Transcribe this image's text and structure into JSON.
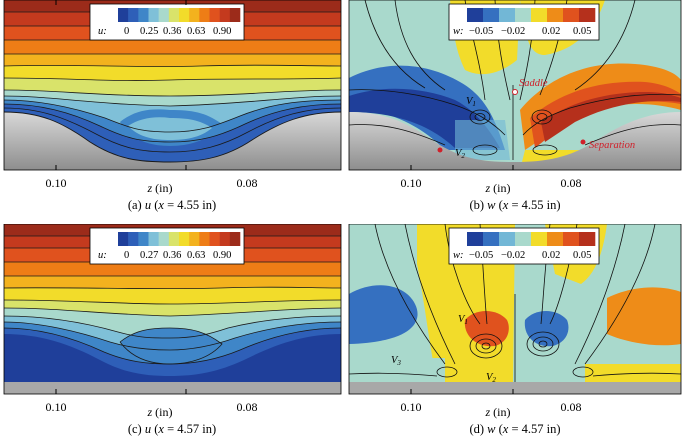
{
  "panels": [
    {
      "id": "a",
      "variable": "u",
      "legend": {
        "var_label": "u:",
        "ticks": [
          "0",
          "0.25",
          "0.36",
          "0.63",
          "0.90"
        ]
      },
      "caption": {
        "letter": "(a) ",
        "var": "u",
        "pre": " (",
        "x": "x",
        "post": " = 4.55 in)"
      },
      "xticks": [
        "0.10",
        "0.08"
      ],
      "xlabel": {
        "var": "z",
        "unit": " (in)"
      }
    },
    {
      "id": "b",
      "variable": "w",
      "legend": {
        "var_label": "w:",
        "ticks": [
          "−0.05",
          "−0.02",
          "0.02",
          "0.05"
        ]
      },
      "caption": {
        "letter": "(b) ",
        "var": "w",
        "pre": " (",
        "x": "x",
        "post": " = 4.55 in)"
      },
      "xticks": [
        "0.10",
        "0.08"
      ],
      "xlabel": {
        "var": "z",
        "unit": " (in)"
      },
      "annotations": {
        "v1": "V",
        "v1_sub": "1",
        "v2": "V",
        "v2_sub": "2",
        "saddle": "Saddle",
        "separation": "Separation"
      }
    },
    {
      "id": "c",
      "variable": "u",
      "legend": {
        "var_label": "u:",
        "ticks": [
          "0",
          "0.27",
          "0.36",
          "0.63",
          "0.90"
        ]
      },
      "caption": {
        "letter": "(c) ",
        "var": "u",
        "pre": " (",
        "x": "x",
        "post": " = 4.57 in)"
      },
      "xticks": [
        "0.10",
        "0.08"
      ],
      "xlabel": {
        "var": "z",
        "unit": " (in)"
      }
    },
    {
      "id": "d",
      "variable": "w",
      "legend": {
        "var_label": "w:",
        "ticks": [
          "−0.05",
          "−0.02",
          "0.02",
          "0.05"
        ]
      },
      "caption": {
        "letter": "(d) ",
        "var": "w",
        "pre": " (",
        "x": "x",
        "post": " = 4.57 in)"
      },
      "xticks": [
        "0.10",
        "0.08"
      ],
      "xlabel": {
        "var": "z",
        "unit": " (in)"
      },
      "annotations": {
        "v1": "V",
        "v1_sub": "1",
        "v2": "V",
        "v2_sub": "2",
        "v3": "V",
        "v3_sub": "3"
      }
    }
  ],
  "colors": {
    "u_scale": [
      "#1f3f9a",
      "#2e5fb8",
      "#3f86c8",
      "#7fc0d8",
      "#a9d9cc",
      "#d9e36a",
      "#f2dc2a",
      "#f3b21e",
      "#ee7d16",
      "#e0521e",
      "#c43a1e",
      "#9c2b1a"
    ],
    "w_scale": [
      "#1f3f9a",
      "#3570c0",
      "#72b7d6",
      "#a9d9cc",
      "#f2dc2a",
      "#ee8c18",
      "#e0521e",
      "#b5301c"
    ],
    "w_neutral": "#a9d9cc",
    "wall": "#b4b4b4",
    "annotation_red": "#d0202a"
  }
}
